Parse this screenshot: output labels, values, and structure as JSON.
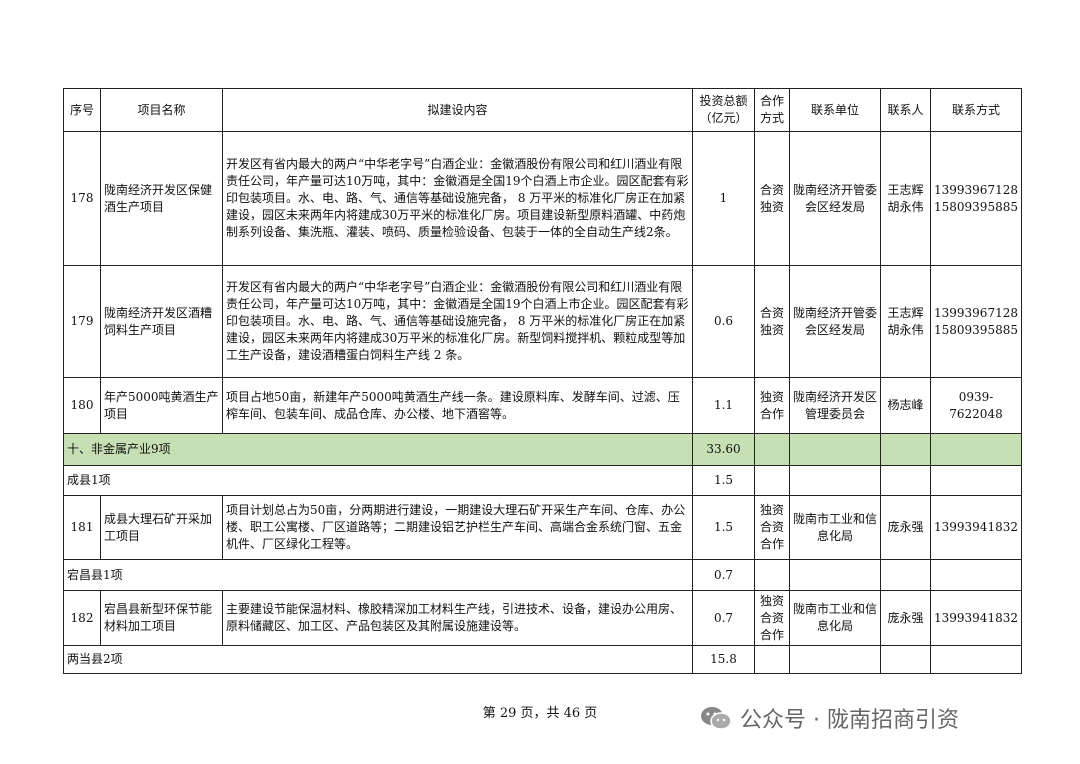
{
  "headers": [
    "序号",
    "项目名称",
    "拟建设内容",
    "投资总额（亿元）",
    "合作方式",
    "联系单位",
    "联系人",
    "联系方式"
  ],
  "rows": [
    {
      "type": "item",
      "no": "178",
      "name": "陇南经济开发区保健酒生产项目",
      "content": "开发区有省内最大的两户“中华老字号”白酒企业：金徽酒股份有限公司和红川酒业有限责任公司，年产量可达10万吨，其中：金徽酒是全国19个白酒上市企业。园区配套有彩印包装项目。水、电、路、气、通信等基础设施完备， 8 万平米的标准化厂房正在加紧建设，园区未来两年内将建成30万平米的标准化厂房。项目建设新型原料酒罐、中药炮制系列设备、集洗瓶、灌装、喷码、质量检验设备、包装于一体的全自动生产线2条。",
      "invest": "1",
      "coop": "合资\n独资",
      "unit": "陇南经济开管委会区经发局",
      "person": "王志辉\n胡永伟",
      "phone": "13993967128\n15809395885"
    },
    {
      "type": "item",
      "no": "179",
      "name": "陇南经济开发区酒糟饲料生产项目",
      "content": "开发区有省内最大的两户“中华老字号”白酒企业：金徽酒股份有限公司和红川酒业有限责任公司，年产量可达10万吨，其中：金徽酒是全国19个白酒上市企业。园区配套有彩印包装项目。水、电、路、气、通信等基础设施完备， 8 万平米的标准化厂房正在加紧建设，园区未来两年内将建成30万平米的标准化厂房。新型饲料搅拌机、颗粒成型等加工生产设备，建设酒糟蛋白饲料生产线 2 条。",
      "invest": "0.6",
      "coop": "合资\n独资",
      "unit": "陇南经济开管委会区经发局",
      "person": "王志辉\n胡永伟",
      "phone": "13993967128\n15809395885"
    },
    {
      "type": "item",
      "no": "180",
      "name": "年产5000吨黄酒生产项目",
      "content": "项目占地50亩，新建年产5000吨黄酒生产线一条。建设原料库、发酵车间、过滤、压榨车间、包装车间、成品仓库、办公楼、地下酒窖等。",
      "invest": "1.1",
      "coop": "独资\n合作",
      "unit": "陇南经济开发区管理委员会",
      "person": "杨志峰",
      "phone": "0939-7622048"
    },
    {
      "type": "section",
      "label": "十、非金属产业9项",
      "invest": "33.60"
    },
    {
      "type": "county",
      "label": "成县1项",
      "invest": "1.5"
    },
    {
      "type": "item",
      "no": "181",
      "name": "成县大理石矿开采加工项目",
      "content": "项目计划总占为50亩，分两期进行建设，一期建设大理石矿开采生产车间、仓库、办公楼、职工公寓楼、厂区道路等；二期建设铝艺护栏生产车间、高端合金系统门窗、五金机件、厂区绿化工程等。",
      "invest": "1.5",
      "coop": "独资\n合资\n合作",
      "unit": "陇南市工业和信息化局",
      "person": "庞永强",
      "phone": "13993941832"
    },
    {
      "type": "county",
      "label": "宕昌县1项",
      "invest": "0.7"
    },
    {
      "type": "item",
      "no": "182",
      "name": "宕昌县新型环保节能材料加工项目",
      "content": "主要建设节能保温材料、橡胶精深加工材料生产线，引进技术、设备，建设办公用房、原料储藏区、加工区、产品包装区及其附属设施建设等。",
      "invest": "0.7",
      "coop": "独资\n合资\n合作",
      "unit": "陇南市工业和信息化局",
      "person": "庞永强",
      "phone": "13993941832"
    },
    {
      "type": "county",
      "label": "两当县2项",
      "invest": "15.8"
    }
  ],
  "footer": "第 29 页，共 46 页",
  "watermark": "公众号 · 陇南招商引资",
  "colors": {
    "section_bg": "#c6e0b4"
  }
}
